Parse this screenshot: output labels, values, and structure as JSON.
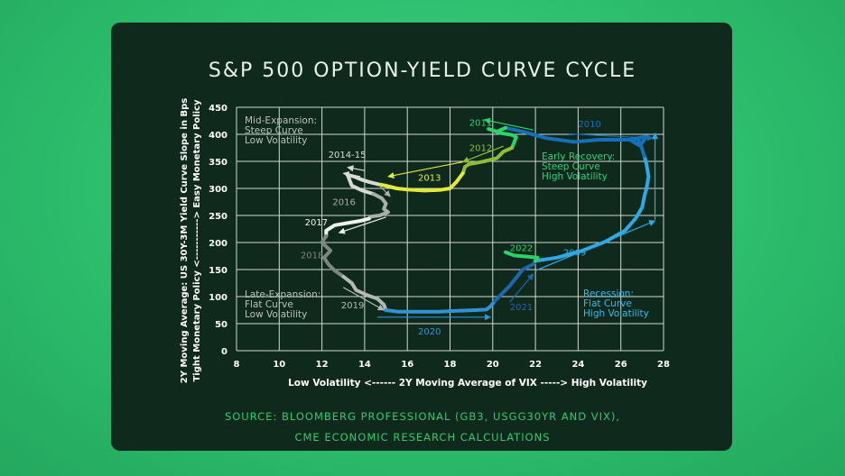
{
  "title": "S&P 500 OPTION-YIELD CURVE CYCLE",
  "source_line1": "SOURCE: BLOOMBERG PROFESSIONAL (GB3, USGG30YR AND VIX),",
  "source_line2": "CME ECONOMIC RESEARCH CALCULATIONS",
  "colors": {
    "background": "#2dbd6e",
    "card": "#0f2a1d",
    "grid": "#cfd8d3",
    "source": "#35c870"
  },
  "chart_data": {
    "type": "line",
    "title": "S&P 500 OPTION-YIELD CURVE CYCLE",
    "xlabel": "Low Volatility <------ 2Y Moving Average of VIX -----> High Volatility",
    "ylabel_line1": "2Y Moving Average: US 30Y-3M  Yield Curve Slope in Bps",
    "ylabel_line2": "Tight Monetary Policy <-----------> Easy Monetary Policy",
    "xlim": [
      8,
      28
    ],
    "ylim": [
      0,
      450
    ],
    "xticks": [
      "8",
      "10",
      "12",
      "14",
      "16",
      "18",
      "20",
      "22",
      "24",
      "26",
      "28"
    ],
    "yticks": [
      "0",
      "50",
      "100",
      "150",
      "200",
      "250",
      "300",
      "350",
      "400",
      "450"
    ],
    "grid": true,
    "quadrants": [
      {
        "name": "mid-expansion",
        "lines": [
          "Mid-Expansion:",
          "Steep Curve",
          "Low Volatility"
        ],
        "color": "#b9c2bd"
      },
      {
        "name": "early-recovery",
        "lines": [
          "Early Recovery:",
          "Steep Curve",
          "High Volatility"
        ],
        "color": "#2fd27a"
      },
      {
        "name": "late-expansion",
        "lines": [
          "Late-Expansion:",
          "Flat Curve",
          "Low Volatility"
        ],
        "color": "#b9c2bd"
      },
      {
        "name": "recession",
        "lines": [
          "Recession:",
          "Flat Curve",
          "High Volatility"
        ],
        "color": "#3cb6ec"
      }
    ],
    "series": [
      {
        "name": "2009",
        "color": "#2fa8e6",
        "x": [
          22.0,
          23.0,
          24.2,
          25.3,
          26.2,
          26.7,
          27.0,
          27.1,
          27.2,
          27.3,
          27.2,
          27.1
        ],
        "y": [
          166,
          172,
          185,
          202,
          222,
          245,
          265,
          285,
          300,
          322,
          345,
          360
        ]
      },
      {
        "name": "2010",
        "color": "#1570b8",
        "x": [
          27.1,
          27.0,
          26.9,
          26.8,
          26.5,
          26.9,
          27.2,
          26.4,
          25.0,
          23.8,
          22.5,
          21.5,
          20.6
        ],
        "y": [
          360,
          372,
          384,
          392,
          388,
          379,
          396,
          390,
          390,
          386,
          393,
          404,
          412
        ]
      },
      {
        "name": "2011",
        "color": "#2bd46b",
        "x": [
          20.6,
          20.2,
          19.8,
          20.4,
          20.9,
          21.1,
          21.0,
          20.9
        ],
        "y": [
          412,
          405,
          410,
          402,
          399,
          395,
          385,
          375
        ]
      },
      {
        "name": "2012",
        "color": "#8fbd3a",
        "x": [
          20.9,
          20.5,
          20.2,
          19.6,
          19.2,
          18.9,
          18.7,
          18.6
        ],
        "y": [
          375,
          368,
          356,
          350,
          347,
          345,
          340,
          328
        ]
      },
      {
        "name": "2013",
        "color": "#e3ea3a",
        "x": [
          18.6,
          18.3,
          18.0,
          17.5,
          16.8,
          16.0,
          15.5,
          15.0,
          14.6
        ],
        "y": [
          328,
          312,
          300,
          297,
          296,
          298,
          300,
          305,
          308
        ]
      },
      {
        "name": "2014-15",
        "color": "#d6dbd7",
        "x": [
          14.6,
          14.2,
          13.8,
          13.5,
          13.2,
          13.4,
          13.9,
          14.4
        ],
        "y": [
          308,
          312,
          317,
          322,
          325,
          305,
          296,
          290
        ]
      },
      {
        "name": "2016",
        "color": "#a7b0aa",
        "x": [
          14.4,
          14.8,
          15.0,
          14.9,
          15.1,
          14.7,
          14.3,
          14.2
        ],
        "y": [
          290,
          282,
          272,
          262,
          256,
          250,
          248,
          244
        ]
      },
      {
        "name": "2017",
        "color": "#eef2ef",
        "x": [
          14.2,
          13.8,
          13.2,
          12.6,
          12.2,
          12.2
        ],
        "y": [
          244,
          240,
          236,
          232,
          222,
          212
        ]
      },
      {
        "name": "2018",
        "color": "#7d8782",
        "x": [
          12.2,
          12.0,
          12.4,
          12.1,
          12.3,
          12.6,
          13.0
        ],
        "y": [
          212,
          200,
          185,
          172,
          160,
          148,
          137
        ]
      },
      {
        "name": "2019",
        "color": "#b2bab5",
        "x": [
          13.0,
          13.4,
          13.6,
          14.1,
          14.6,
          14.9,
          15.0
        ],
        "y": [
          137,
          125,
          112,
          103,
          96,
          85,
          75
        ]
      },
      {
        "name": "2020",
        "color": "#2f93d5",
        "x": [
          15.0,
          15.6,
          16.5,
          17.5,
          18.5,
          19.2,
          19.7,
          19.9,
          20.1
        ],
        "y": [
          75,
          72,
          72,
          72,
          74,
          75,
          76,
          82,
          92
        ]
      },
      {
        "name": "2021",
        "color": "#1c67ad",
        "x": [
          20.1,
          20.3,
          20.5,
          20.8,
          21.1,
          21.4,
          21.9,
          22.0
        ],
        "y": [
          92,
          100,
          108,
          120,
          135,
          150,
          160,
          166
        ]
      },
      {
        "name": "2022",
        "color": "#2bd46b",
        "x": [
          20.6,
          21.0,
          21.6,
          22.1,
          22.0
        ],
        "y": [
          182,
          176,
          174,
          172,
          166
        ]
      }
    ],
    "year_labels": [
      {
        "text": "2009",
        "x": 23.3,
        "y": 176,
        "color": "#2fa8e6"
      },
      {
        "text": "2010",
        "x": 24.0,
        "y": 413,
        "color": "#1570b8"
      },
      {
        "text": "2011",
        "x": 18.9,
        "y": 416,
        "color": "#2bd46b"
      },
      {
        "text": "2012",
        "x": 18.9,
        "y": 369,
        "color": "#8fbd3a"
      },
      {
        "text": "2013",
        "x": 16.5,
        "y": 314,
        "color": "#e3ea3a"
      },
      {
        "text": "2014-15",
        "x": 12.3,
        "y": 357,
        "color": "#d6dbd7"
      },
      {
        "text": "2016",
        "x": 12.5,
        "y": 269,
        "color": "#a7b0aa"
      },
      {
        "text": "2017",
        "x": 11.2,
        "y": 232,
        "color": "#eef2ef"
      },
      {
        "text": "2018",
        "x": 11.0,
        "y": 171,
        "color": "#7d8782"
      },
      {
        "text": "2019",
        "x": 12.9,
        "y": 78,
        "color": "#b2bab5"
      },
      {
        "text": "2020",
        "x": 16.5,
        "y": 30,
        "color": "#2f93d5"
      },
      {
        "text": "2021",
        "x": 20.8,
        "y": 75,
        "color": "#1c67ad"
      },
      {
        "text": "2022",
        "x": 20.8,
        "y": 184,
        "color": "#2bd46b"
      }
    ],
    "arrows": [
      {
        "x1": 21.9,
        "y1": 408,
        "x2": 19.6,
        "y2": 427,
        "color": "#2bd46b"
      },
      {
        "x1": 23.5,
        "y1": 401,
        "x2": 27.5,
        "y2": 393,
        "color": "#1570b8"
      },
      {
        "x1": 18.6,
        "y1": 349,
        "x2": 15.1,
        "y2": 322,
        "color": "#e3ea3a"
      },
      {
        "x1": 20.5,
        "y1": 378,
        "x2": 18.6,
        "y2": 349,
        "color": "#8fbd3a"
      },
      {
        "x1": 14.0,
        "y1": 333,
        "x2": 13.2,
        "y2": 339,
        "color": "#d6dbd7"
      },
      {
        "x1": 13.8,
        "y1": 322,
        "x2": 13.0,
        "y2": 328,
        "color": "#d6dbd7"
      },
      {
        "x1": 14.7,
        "y1": 305,
        "x2": 15.2,
        "y2": 285,
        "color": "#a7b0aa"
      },
      {
        "x1": 15.0,
        "y1": 247,
        "x2": 12.8,
        "y2": 218,
        "color": "#eef2ef"
      },
      {
        "x1": 13.0,
        "y1": 117,
        "x2": 14.9,
        "y2": 75,
        "color": "#b2bab5"
      },
      {
        "x1": 14.6,
        "y1": 62,
        "x2": 19.9,
        "y2": 62,
        "color": "#2f93d5"
      },
      {
        "x1": 20.8,
        "y1": 90,
        "x2": 21.9,
        "y2": 142,
        "color": "#1c67ad"
      },
      {
        "x1": 22.0,
        "y1": 148,
        "x2": 27.6,
        "y2": 240,
        "color": "#2fa8e6"
      },
      {
        "x1": 27.6,
        "y1": 242,
        "x2": 27.6,
        "y2": 402,
        "color": "#2fa8e6"
      }
    ]
  }
}
